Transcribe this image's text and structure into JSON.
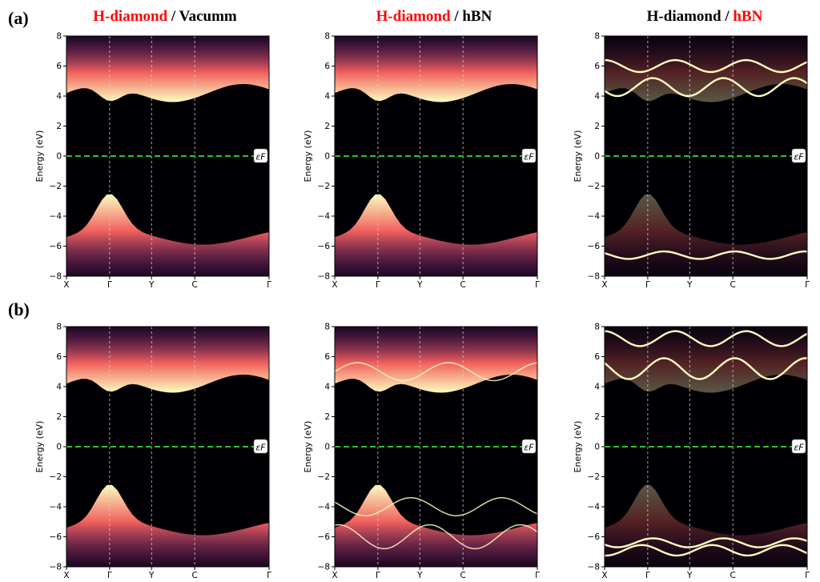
{
  "figure": {
    "row_labels": [
      "(a)",
      "(b)"
    ],
    "column_titles": [
      [
        {
          "text": "H-diamond",
          "color": "#ff0000"
        },
        {
          "text": " / ",
          "color": "#000000"
        },
        {
          "text": "Vacumm",
          "color": "#000000"
        }
      ],
      [
        {
          "text": "H-diamond",
          "color": "#ff0000"
        },
        {
          "text": " / ",
          "color": "#000000"
        },
        {
          "text": "hBN",
          "color": "#000000"
        }
      ],
      [
        {
          "text": "H-diamond",
          "color": "#000000"
        },
        {
          "text": " / ",
          "color": "#000000"
        },
        {
          "text": "hBN",
          "color": "#ff0000"
        }
      ]
    ]
  },
  "colors": {
    "background": "#000004",
    "fermi_line": "#2ec234",
    "kpath_line": "#cfcfcf",
    "band_bright": "#fcfdbf",
    "band_mid": "#f1605d",
    "band_dim": "#721f81"
  },
  "chart_data": [
    {
      "type": "heatmap",
      "row": "(a)",
      "column": 0,
      "ylabel": "Energy (eV)",
      "ylim": [
        -8,
        8
      ],
      "yticks": [
        -8,
        -6,
        -4,
        -2,
        0,
        2,
        4,
        6,
        8
      ],
      "kpoints": [
        "X",
        "Γ",
        "Y",
        "C",
        "Γ"
      ],
      "fermi_label": "εF",
      "fermi_energy": 0
    },
    {
      "type": "heatmap",
      "row": "(a)",
      "column": 1,
      "ylabel": "Energy (eV)",
      "ylim": [
        -8,
        8
      ],
      "yticks": [
        -8,
        -6,
        -4,
        -2,
        0,
        2,
        4,
        6,
        8
      ],
      "kpoints": [
        "X",
        "Γ",
        "Y",
        "C",
        "Γ"
      ],
      "fermi_label": "εF",
      "fermi_energy": 0
    },
    {
      "type": "heatmap",
      "row": "(a)",
      "column": 2,
      "ylabel": "Energy (eV)",
      "ylim": [
        -8,
        8
      ],
      "yticks": [
        -8,
        -6,
        -4,
        -2,
        0,
        2,
        4,
        6,
        8
      ],
      "kpoints": [
        "X",
        "Γ",
        "Y",
        "C",
        "Γ"
      ],
      "fermi_label": "εF",
      "fermi_energy": 0
    },
    {
      "type": "heatmap",
      "row": "(b)",
      "column": 0,
      "ylabel": "Energy (eV)",
      "ylim": [
        -8,
        8
      ],
      "yticks": [
        -8,
        -6,
        -4,
        -2,
        0,
        2,
        4,
        6,
        8
      ],
      "kpoints": [
        "X",
        "Γ",
        "Y",
        "C",
        "Γ"
      ],
      "fermi_label": "εF",
      "fermi_energy": 0
    },
    {
      "type": "heatmap",
      "row": "(b)",
      "column": 1,
      "ylabel": "Energy (eV)",
      "ylim": [
        -8,
        8
      ],
      "yticks": [
        -8,
        -6,
        -4,
        -2,
        0,
        2,
        4,
        6,
        8
      ],
      "kpoints": [
        "X",
        "Γ",
        "Y",
        "C",
        "Γ"
      ],
      "fermi_label": "εF",
      "fermi_energy": 0
    },
    {
      "type": "heatmap",
      "row": "(b)",
      "column": 2,
      "ylabel": "Energy (eV)",
      "ylim": [
        -8,
        8
      ],
      "yticks": [
        -8,
        -6,
        -4,
        -2,
        0,
        2,
        4,
        6,
        8
      ],
      "kpoints": [
        "X",
        "Γ",
        "Y",
        "C",
        "Γ"
      ],
      "fermi_label": "εF",
      "fermi_energy": 0
    }
  ]
}
